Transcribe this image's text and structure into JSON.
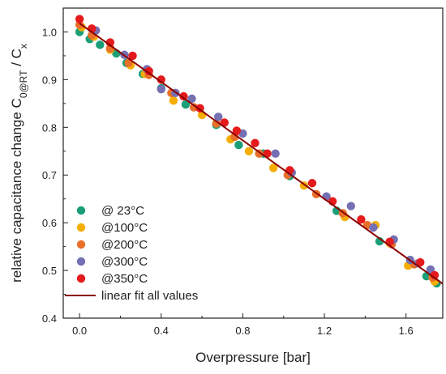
{
  "chart_data": {
    "type": "scatter",
    "xlabel": "Overpressure [bar]",
    "ylabel": {
      "parts": [
        {
          "text": "relative capacitance change C"
        },
        {
          "text": "0@RT",
          "sub": true
        },
        {
          "text": " / C"
        },
        {
          "text": "x",
          "sub": true
        }
      ]
    },
    "xlim": [
      -0.08,
      1.78
    ],
    "ylim": [
      0.4,
      1.05
    ],
    "xticks": [
      0.0,
      0.4,
      0.8,
      1.2,
      1.6
    ],
    "xtick_labels": [
      "0.0",
      "0.4",
      "0.8",
      "1.2",
      "1.6"
    ],
    "yticks": [
      0.4,
      0.5,
      0.6,
      0.7,
      0.8,
      0.9,
      1.0
    ],
    "ytick_labels": [
      "0.4",
      "0.5",
      "0.6",
      "0.7",
      "0.8",
      "0.9",
      "1.0"
    ],
    "grid": false,
    "legend_position": "bottom-left",
    "series": [
      {
        "name": "@ 23°C",
        "color": "#1a9e77",
        "x": [
          0.0,
          0.05,
          0.1,
          0.18,
          0.23,
          0.31,
          0.4,
          0.52,
          0.67,
          0.78,
          0.9,
          1.03,
          1.26,
          1.47,
          1.7,
          1.75
        ],
        "y": [
          1.0,
          0.985,
          0.973,
          0.955,
          0.935,
          0.912,
          0.882,
          0.848,
          0.805,
          0.763,
          0.745,
          0.698,
          0.625,
          0.561,
          0.488,
          0.473
        ]
      },
      {
        "name": "@100°C",
        "color": "#f5ad00",
        "x": [
          0.01,
          0.07,
          0.15,
          0.25,
          0.32,
          0.46,
          0.6,
          0.74,
          0.83,
          0.95,
          1.1,
          1.3,
          1.45,
          1.52,
          1.61,
          1.74
        ],
        "y": [
          1.01,
          0.99,
          0.963,
          0.93,
          0.912,
          0.856,
          0.826,
          0.775,
          0.75,
          0.715,
          0.678,
          0.612,
          0.595,
          0.557,
          0.51,
          0.477
        ]
      },
      {
        "name": "@200°C",
        "color": "#e8702a",
        "x": [
          0.0,
          0.06,
          0.15,
          0.24,
          0.34,
          0.45,
          0.56,
          0.67,
          0.76,
          0.88,
          1.02,
          1.16,
          1.29,
          1.41,
          1.53,
          1.64,
          1.73
        ],
        "y": [
          1.015,
          0.993,
          0.966,
          0.935,
          0.91,
          0.872,
          0.842,
          0.808,
          0.78,
          0.745,
          0.7,
          0.66,
          0.62,
          0.595,
          0.555,
          0.513,
          0.485
        ]
      },
      {
        "name": "@300°C",
        "color": "#7570b3",
        "x": [
          0.08,
          0.22,
          0.33,
          0.4,
          0.47,
          0.55,
          0.68,
          0.8,
          0.96,
          1.04,
          1.21,
          1.33,
          1.44,
          1.54,
          1.62,
          1.66,
          1.72
        ],
        "y": [
          1.003,
          0.952,
          0.922,
          0.88,
          0.872,
          0.86,
          0.822,
          0.787,
          0.745,
          0.705,
          0.655,
          0.635,
          0.59,
          0.565,
          0.522,
          0.515,
          0.502
        ]
      },
      {
        "name": "@350°C",
        "color": "#e41a1c",
        "x": [
          0.0,
          0.06,
          0.15,
          0.26,
          0.34,
          0.4,
          0.51,
          0.59,
          0.71,
          0.77,
          0.86,
          0.92,
          1.03,
          1.14,
          1.24,
          1.38,
          1.52,
          1.67,
          1.74
        ],
        "y": [
          1.027,
          1.007,
          0.978,
          0.95,
          0.918,
          0.9,
          0.865,
          0.84,
          0.81,
          0.793,
          0.767,
          0.745,
          0.71,
          0.683,
          0.645,
          0.607,
          0.56,
          0.517,
          0.49
        ]
      }
    ],
    "fit": {
      "name": "linear fit all values",
      "color": "#8b0000",
      "x": [
        0.0,
        1.78
      ],
      "y": [
        1.018,
        0.472
      ]
    }
  }
}
